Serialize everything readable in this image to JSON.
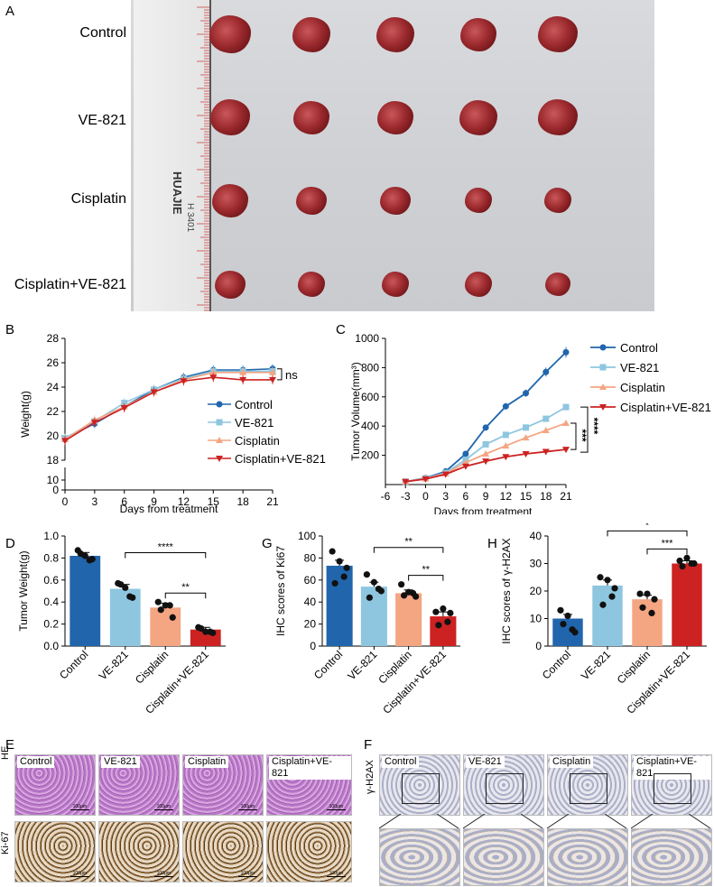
{
  "panels": {
    "A": "A",
    "B": "B",
    "C": "C",
    "D": "D",
    "E": "E",
    "F": "F",
    "G": "G",
    "H": "H"
  },
  "photo": {
    "rows": [
      "Control",
      "VE-821",
      "Cisplatin",
      "Cisplatin+VE-821"
    ],
    "ruler_brand": "HUAJIE",
    "ruler_code": "H 3401"
  },
  "colors": {
    "control": "#2166ac",
    "ve821": "#8ec6e0",
    "cisplatin": "#f4a582",
    "combo": "#cc2222"
  },
  "chart_data": [
    {
      "id": "B",
      "type": "line",
      "title": "",
      "xlabel": "Days from treatment",
      "ylabel": "Weight(g)",
      "x": [
        0,
        3,
        6,
        9,
        12,
        15,
        18,
        21
      ],
      "xlim": [
        0,
        21
      ],
      "ylim": [
        18,
        28
      ],
      "yticks_upper": [
        18,
        20,
        22,
        24,
        26,
        28
      ],
      "yticks_lower": [
        0,
        10
      ],
      "series": [
        {
          "name": "Control",
          "values": [
            19.8,
            21.0,
            22.4,
            23.8,
            24.8,
            25.4,
            25.4,
            25.5
          ]
        },
        {
          "name": "VE-821",
          "values": [
            19.8,
            21.2,
            22.7,
            23.8,
            24.7,
            25.3,
            25.3,
            25.3
          ]
        },
        {
          "name": "Cisplatin",
          "values": [
            19.7,
            21.3,
            22.4,
            23.6,
            24.6,
            25.2,
            25.2,
            25.2
          ]
        },
        {
          "name": "Cisplatin+VE-821",
          "values": [
            19.6,
            21.1,
            22.3,
            23.6,
            24.5,
            24.8,
            24.6,
            24.6
          ]
        }
      ],
      "annotation": "ns"
    },
    {
      "id": "C",
      "type": "line",
      "title": "",
      "xlabel": "Days from treatment",
      "ylabel": "Tumor Volume(mm³)",
      "x": [
        -3,
        0,
        3,
        6,
        9,
        12,
        15,
        18,
        21
      ],
      "xticks": [
        -6,
        -3,
        0,
        3,
        6,
        9,
        12,
        15,
        18,
        21
      ],
      "xlim": [
        -6,
        21
      ],
      "ylim": [
        0,
        1000
      ],
      "yticks": [
        200,
        400,
        600,
        800,
        1000
      ],
      "series": [
        {
          "name": "Control",
          "values": [
            20,
            45,
            90,
            210,
            390,
            535,
            625,
            770,
            905
          ]
        },
        {
          "name": "VE-821",
          "values": [
            20,
            42,
            80,
            170,
            275,
            340,
            390,
            450,
            530
          ]
        },
        {
          "name": "Cisplatin",
          "values": [
            20,
            40,
            75,
            150,
            210,
            265,
            320,
            370,
            420
          ]
        },
        {
          "name": "Cisplatin+VE-821",
          "values": [
            20,
            38,
            70,
            125,
            160,
            190,
            210,
            225,
            240
          ]
        }
      ],
      "annotations": [
        "***",
        "****"
      ]
    },
    {
      "id": "D",
      "type": "bar",
      "ylabel": "Tumor Weight(g)",
      "categories": [
        "Control",
        "VE-821",
        "Cisplatin",
        "Cisplatin+VE-821"
      ],
      "values": [
        0.82,
        0.52,
        0.35,
        0.15
      ],
      "errors": [
        0.03,
        0.04,
        0.04,
        0.02
      ],
      "ylim": [
        0,
        1.0
      ],
      "yticks": [
        0.0,
        0.2,
        0.4,
        0.6,
        0.8,
        1.0
      ],
      "points": [
        [
          0.87,
          0.82,
          0.79,
          0.84,
          0.78
        ],
        [
          0.57,
          0.53,
          0.44,
          0.56,
          0.45
        ],
        [
          0.4,
          0.37,
          0.26,
          0.33,
          0.37
        ],
        [
          0.17,
          0.13,
          0.12,
          0.16,
          0.13
        ]
      ],
      "sig": [
        {
          "from": 1,
          "to": 3,
          "label": "****"
        },
        {
          "from": 2,
          "to": 3,
          "label": "**"
        }
      ]
    },
    {
      "id": "G",
      "type": "bar",
      "ylabel": "IHC scores of Ki67",
      "categories": [
        "Control",
        "VE-821",
        "Cisplatin",
        "Cisplatin+VE-821"
      ],
      "values": [
        73,
        54,
        48,
        27
      ],
      "errors": [
        5,
        4,
        3,
        4
      ],
      "ylim": [
        0,
        100
      ],
      "yticks": [
        0,
        20,
        40,
        60,
        80,
        100
      ],
      "points": [
        [
          86,
          77,
          71,
          57,
          63
        ],
        [
          65,
          58,
          50,
          44,
          52
        ],
        [
          56,
          49,
          45,
          46,
          48
        ],
        [
          31,
          34,
          30,
          19,
          22
        ]
      ],
      "sig": [
        {
          "from": 1,
          "to": 3,
          "label": "**"
        },
        {
          "from": 2,
          "to": 3,
          "label": "**"
        }
      ]
    },
    {
      "id": "H",
      "type": "bar",
      "ylabel": "IHC scores of γ-H2AX",
      "categories": [
        "Control",
        "VE-821",
        "Cisplatin",
        "Cisplatin+VE-821"
      ],
      "values": [
        10,
        22,
        17,
        30
      ],
      "errors": [
        1.5,
        2,
        1.5,
        1
      ],
      "ylim": [
        0,
        40
      ],
      "yticks": [
        0,
        10,
        20,
        30,
        40
      ],
      "points": [
        [
          13,
          11,
          5,
          8,
          6
        ],
        [
          25,
          24,
          21,
          15,
          18
        ],
        [
          19,
          19,
          17,
          14,
          12
        ],
        [
          31,
          32,
          30,
          29,
          30
        ]
      ],
      "sig": [
        {
          "from": 1,
          "to": 3,
          "label": "*"
        },
        {
          "from": 2,
          "to": 3,
          "label": "***"
        }
      ]
    }
  ],
  "histology": {
    "E_rows": [
      "HE",
      "Ki-67"
    ],
    "F_rows": [
      "γ-H2AX"
    ],
    "groups": [
      "Control",
      "VE-821",
      "Cisplatin",
      "Cisplatin+VE-821"
    ],
    "scale_bar": "100μm"
  }
}
